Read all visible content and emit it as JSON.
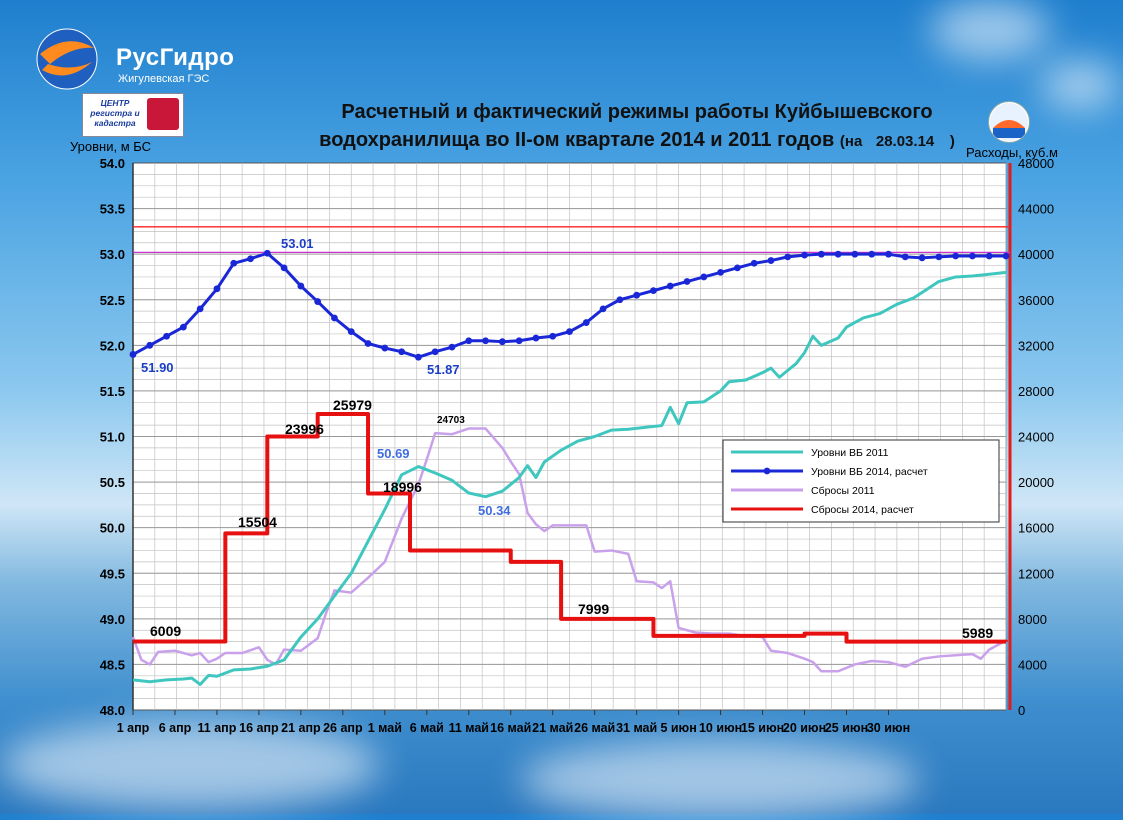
{
  "brand": {
    "name": "РусГидро",
    "subtitle": "Жигулевская ГЭС"
  },
  "center_logo": {
    "text": "ЦЕНТР регистра и кадастра"
  },
  "title": {
    "line1": "Расчетный и фактический режимы работы Куйбышевского",
    "line2": "водохранилища во II-ом квартале 2014 и 2011 годов",
    "date_prefix": "(на",
    "date": "28.03.14",
    "date_suffix": ")"
  },
  "colors": {
    "levels_2011": "#3fc7bf",
    "levels_2014": "#1a27d6",
    "discharge_2011": "#c9a0ea",
    "discharge_2014": "#e61010",
    "hline_red": "#ff2020",
    "hline_magenta": "#cc33cc",
    "right_axis": "#e31b1b",
    "annotation_blue": "#1a3ec8",
    "annotation_light_blue": "#3f6ee0"
  },
  "chart_data": {
    "type": "line",
    "title": "Расчетный и фактический режимы работы Куйбышевского водохранилища во II-ом квартале 2014 и 2011 годов",
    "ylabel_left": "Уровни, м БС",
    "ylabel_right": "Расходы, куб.м",
    "ylim_left": [
      48.0,
      54.0
    ],
    "ylim_right": [
      0,
      48000
    ],
    "y_ticks_left": [
      "48.0",
      "48.5",
      "49.0",
      "49.5",
      "50.0",
      "50.5",
      "51.0",
      "51.5",
      "52.0",
      "52.5",
      "53.0",
      "53.5",
      "54.0"
    ],
    "y_ticks_right": [
      "0",
      "4000",
      "8000",
      "12000",
      "16000",
      "20000",
      "24000",
      "28000",
      "32000",
      "36000",
      "40000",
      "44000",
      "48000"
    ],
    "x_ticks": [
      "1 апр",
      "6 апр",
      "11 апр",
      "16 апр",
      "21 апр",
      "26 апр",
      "1 май",
      "6 май",
      "11 май",
      "16 май",
      "21 май",
      "26 май",
      "31 май",
      "5 июн",
      "10 июн",
      "15 июн",
      "20 июн",
      "25 июн",
      "30 июн"
    ],
    "grid": true,
    "legend_position": "right-middle",
    "hlines_left_axis": [
      53.3,
      53.02
    ],
    "days": 91,
    "series": [
      {
        "name": "Уровни ВБ 2011",
        "axis": "left",
        "marker": "none",
        "points": [
          [
            1,
            48.33
          ],
          [
            3,
            48.31
          ],
          [
            5,
            48.33
          ],
          [
            7,
            48.34
          ],
          [
            8,
            48.35
          ],
          [
            9,
            48.28
          ],
          [
            10,
            48.38
          ],
          [
            11,
            48.37
          ],
          [
            13,
            48.44
          ],
          [
            15,
            48.45
          ],
          [
            17,
            48.48
          ],
          [
            19,
            48.55
          ],
          [
            21,
            48.8
          ],
          [
            23,
            49.0
          ],
          [
            25,
            49.25
          ],
          [
            27,
            49.5
          ],
          [
            29,
            49.85
          ],
          [
            31,
            50.2
          ],
          [
            33,
            50.58
          ],
          [
            35,
            50.67
          ],
          [
            37,
            50.6
          ],
          [
            39,
            50.52
          ],
          [
            41,
            50.38
          ],
          [
            43,
            50.34
          ],
          [
            45,
            50.4
          ],
          [
            47,
            50.55
          ],
          [
            48,
            50.68
          ],
          [
            49,
            50.55
          ],
          [
            50,
            50.72
          ],
          [
            52,
            50.85
          ],
          [
            54,
            50.95
          ],
          [
            56,
            51.0
          ],
          [
            58,
            51.07
          ],
          [
            60,
            51.08
          ],
          [
            62,
            51.1
          ],
          [
            64,
            51.12
          ],
          [
            65,
            51.32
          ],
          [
            66,
            51.14
          ],
          [
            67,
            51.37
          ],
          [
            69,
            51.38
          ],
          [
            71,
            51.5
          ],
          [
            72,
            51.6
          ],
          [
            74,
            51.62
          ],
          [
            76,
            51.7
          ],
          [
            77,
            51.75
          ],
          [
            78,
            51.65
          ],
          [
            80,
            51.8
          ],
          [
            81,
            51.92
          ],
          [
            82,
            52.1
          ],
          [
            83,
            52.0
          ],
          [
            85,
            52.08
          ],
          [
            86,
            52.2
          ],
          [
            88,
            52.3
          ],
          [
            90,
            52.35
          ],
          [
            92,
            52.45
          ],
          [
            94,
            52.52
          ],
          [
            95,
            52.58
          ],
          [
            97,
            52.7
          ],
          [
            99,
            52.75
          ],
          [
            101,
            52.76
          ],
          [
            103,
            52.78
          ],
          [
            105,
            52.8
          ]
        ]
      },
      {
        "name": "Уровни ВБ 2014, расчет",
        "axis": "left",
        "marker": "circle",
        "points": [
          [
            1,
            51.9
          ],
          [
            3,
            52.0
          ],
          [
            5,
            52.1
          ],
          [
            7,
            52.2
          ],
          [
            9,
            52.4
          ],
          [
            11,
            52.62
          ],
          [
            13,
            52.9
          ],
          [
            15,
            52.95
          ],
          [
            17,
            53.01
          ],
          [
            19,
            52.85
          ],
          [
            21,
            52.65
          ],
          [
            23,
            52.48
          ],
          [
            25,
            52.3
          ],
          [
            27,
            52.15
          ],
          [
            29,
            52.02
          ],
          [
            31,
            51.97
          ],
          [
            33,
            51.93
          ],
          [
            35,
            51.87
          ],
          [
            37,
            51.93
          ],
          [
            39,
            51.98
          ],
          [
            41,
            52.05
          ],
          [
            43,
            52.05
          ],
          [
            45,
            52.04
          ],
          [
            47,
            52.05
          ],
          [
            49,
            52.08
          ],
          [
            51,
            52.1
          ],
          [
            53,
            52.15
          ],
          [
            55,
            52.25
          ],
          [
            57,
            52.4
          ],
          [
            59,
            52.5
          ],
          [
            61,
            52.55
          ],
          [
            63,
            52.6
          ],
          [
            65,
            52.65
          ],
          [
            67,
            52.7
          ],
          [
            69,
            52.75
          ],
          [
            71,
            52.8
          ],
          [
            73,
            52.85
          ],
          [
            75,
            52.9
          ],
          [
            77,
            52.93
          ],
          [
            79,
            52.97
          ],
          [
            81,
            52.99
          ],
          [
            83,
            53.0
          ],
          [
            85,
            53.0
          ],
          [
            87,
            53.0
          ],
          [
            89,
            53.0
          ],
          [
            91,
            53.0
          ],
          [
            93,
            52.97
          ],
          [
            95,
            52.96
          ],
          [
            97,
            52.97
          ],
          [
            99,
            52.98
          ],
          [
            101,
            52.98
          ],
          [
            103,
            52.98
          ],
          [
            105,
            52.98
          ]
        ]
      },
      {
        "name": "Сбросы 2011",
        "axis": "right",
        "marker": "none",
        "points": [
          [
            1,
            6400
          ],
          [
            2,
            4400
          ],
          [
            3,
            4000
          ],
          [
            4,
            5100
          ],
          [
            6,
            5200
          ],
          [
            8,
            4800
          ],
          [
            9,
            5000
          ],
          [
            10,
            4200
          ],
          [
            11,
            4500
          ],
          [
            12,
            5000
          ],
          [
            14,
            5000
          ],
          [
            16,
            5500
          ],
          [
            17,
            4400
          ],
          [
            18,
            4000
          ],
          [
            19,
            5300
          ],
          [
            21,
            5200
          ],
          [
            23,
            6300
          ],
          [
            24,
            8500
          ],
          [
            25,
            10500
          ],
          [
            27,
            10300
          ],
          [
            29,
            11600
          ],
          [
            31,
            13000
          ],
          [
            33,
            16800
          ],
          [
            35,
            19800
          ],
          [
            36,
            22000
          ],
          [
            37,
            24300
          ],
          [
            39,
            24200
          ],
          [
            41,
            24700
          ],
          [
            43,
            24700
          ],
          [
            45,
            23000
          ],
          [
            46,
            21800
          ],
          [
            47,
            20700
          ],
          [
            48,
            17300
          ],
          [
            49,
            16300
          ],
          [
            50,
            15700
          ],
          [
            51,
            16200
          ],
          [
            53,
            16200
          ],
          [
            55,
            16200
          ],
          [
            56,
            13900
          ],
          [
            58,
            14000
          ],
          [
            60,
            13700
          ],
          [
            61,
            11300
          ],
          [
            63,
            11200
          ],
          [
            64,
            10700
          ],
          [
            65,
            11300
          ],
          [
            66,
            7200
          ],
          [
            68,
            6800
          ],
          [
            70,
            6700
          ],
          [
            72,
            6700
          ],
          [
            74,
            6500
          ],
          [
            76,
            6400
          ],
          [
            77,
            5200
          ],
          [
            79,
            5000
          ],
          [
            81,
            4500
          ],
          [
            82,
            4200
          ],
          [
            83,
            3400
          ],
          [
            85,
            3400
          ],
          [
            87,
            4000
          ],
          [
            89,
            4300
          ],
          [
            91,
            4200
          ],
          [
            93,
            3800
          ],
          [
            95,
            4500
          ],
          [
            97,
            4700
          ],
          [
            99,
            4800
          ],
          [
            101,
            4900
          ],
          [
            102,
            4500
          ],
          [
            103,
            5300
          ],
          [
            105,
            6100
          ]
        ]
      },
      {
        "name": "Сбросы 2014, расчет",
        "axis": "right",
        "marker": "none",
        "step": true,
        "points": [
          [
            1,
            6009
          ],
          [
            12,
            15504
          ],
          [
            17,
            23996
          ],
          [
            23,
            25979
          ],
          [
            29,
            18996
          ],
          [
            34,
            14000
          ],
          [
            46,
            13000
          ],
          [
            52,
            7999
          ],
          [
            63,
            6500
          ],
          [
            81,
            6700
          ],
          [
            86,
            6000
          ],
          [
            105,
            5989
          ]
        ]
      }
    ],
    "annotations": [
      {
        "text": "51.90",
        "color": "blue"
      },
      {
        "text": "53.01",
        "color": "blue"
      },
      {
        "text": "51.87",
        "color": "blue"
      },
      {
        "text": "50.69",
        "color": "lightblue"
      },
      {
        "text": "50.34",
        "color": "lightblue"
      },
      {
        "text": "24703",
        "color": "black-small"
      },
      {
        "text": "6009",
        "color": "black"
      },
      {
        "text": "15504",
        "color": "black"
      },
      {
        "text": "23996",
        "color": "black"
      },
      {
        "text": "25979",
        "color": "black"
      },
      {
        "text": "18996",
        "color": "black"
      },
      {
        "text": "7999",
        "color": "black"
      },
      {
        "text": "5989",
        "color": "black"
      }
    ]
  }
}
